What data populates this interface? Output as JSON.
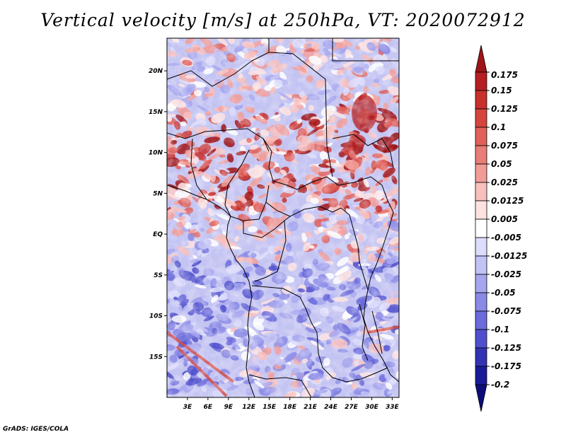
{
  "title": "Vertical velocity [m/s] at 250hPa, VT: 2020072912",
  "footer": "GrADS: IGES/COLA",
  "map": {
    "lon_range": [
      0,
      34
    ],
    "lat_range": [
      -20,
      24
    ],
    "x_ticks": [
      "3E",
      "6E",
      "9E",
      "12E",
      "15E",
      "18E",
      "21E",
      "24E",
      "27E",
      "30E",
      "33E"
    ],
    "y_ticks": [
      "20N",
      "15N",
      "10N",
      "5N",
      "EQ",
      "5S",
      "10S",
      "15S"
    ],
    "field": "vertical velocity at 250hPa",
    "units": "m/s"
  },
  "colorbar": {
    "levels": [
      "0.175",
      "0.15",
      "0.125",
      "0.1",
      "0.075",
      "0.05",
      "0.025",
      "0.0125",
      "0.005",
      "-0.005",
      "-0.0125",
      "-0.025",
      "-0.05",
      "-0.075",
      "-0.1",
      "-0.125",
      "-0.175",
      "-0.2"
    ],
    "colors": [
      "#a01418",
      "#b51f22",
      "#c8302c",
      "#d6453c",
      "#e0605a",
      "#e97d78",
      "#f29c98",
      "#f8c0bd",
      "#fde2e0",
      "#ffffff",
      "#dcdcfb",
      "#c2c2f5",
      "#a6a6ef",
      "#8989e6",
      "#6b6bdb",
      "#4f4fcd",
      "#3232b5",
      "#1a1a98",
      "#0d0d7a"
    ]
  },
  "colors": {
    "positive": "#d84848",
    "negative": "#6a6ad8",
    "neutral": "#ffffff",
    "border": "#000000"
  }
}
